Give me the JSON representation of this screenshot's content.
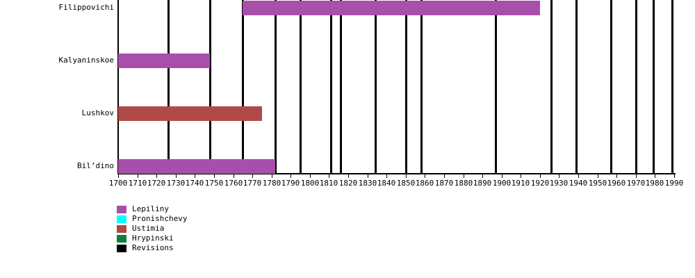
{
  "chart_data": {
    "type": "bar",
    "subtype": "gantt_timeline",
    "title": "",
    "xlabel": "",
    "ylabel": "",
    "grid": false,
    "legend_position": "bottom-left",
    "background": "#ffffff",
    "axis_color": "#000000",
    "x_axis": {
      "min": 1700,
      "max": 1990,
      "tick_step": 10,
      "tick_labels": [
        "1700",
        "1710",
        "1720",
        "1730",
        "1740",
        "1750",
        "1760",
        "1770",
        "1780",
        "1790",
        "1800",
        "1810",
        "1820",
        "1830",
        "1840",
        "1850",
        "1860",
        "1870",
        "1880",
        "1890",
        "1900",
        "1910",
        "1920",
        "1930",
        "1940",
        "1950",
        "1960",
        "1970",
        "1980",
        "1990"
      ]
    },
    "rows": [
      {
        "label": "Filippovichi",
        "bar": {
          "start": 1765,
          "end": 1920,
          "family": "Lepiliny"
        }
      },
      {
        "label": "Kalyaninskoe",
        "bar": {
          "start": 1700,
          "end": 1748,
          "family": "Lepiliny"
        }
      },
      {
        "label": "Lushkov",
        "bar": {
          "start": 1700,
          "end": 1775,
          "family": "Ustimia"
        }
      },
      {
        "label": "Bil’dino",
        "bar": {
          "start": 1700,
          "end": 1782,
          "family": "Lepiliny"
        }
      }
    ],
    "revision_years": [
      1726,
      1748,
      1765,
      1782,
      1795,
      1811,
      1816,
      1834,
      1850,
      1858,
      1897,
      1926,
      1939,
      1957,
      1970,
      1979,
      1989
    ],
    "legend": [
      {
        "label": "Lepiliny",
        "color": "#a74faa"
      },
      {
        "label": "Pronishchevy",
        "color": "#00ffff"
      },
      {
        "label": "Ustimia",
        "color": "#b04a47"
      },
      {
        "label": "Hrypinski",
        "color": "#0e7f3c"
      },
      {
        "label": "Revisions",
        "color": "#000000"
      }
    ],
    "family_colors": {
      "Lepiliny": "#a74faa",
      "Pronishchevy": "#00ffff",
      "Ustimia": "#b04a47",
      "Hrypinski": "#0e7f3c",
      "Revisions": "#000000"
    }
  }
}
